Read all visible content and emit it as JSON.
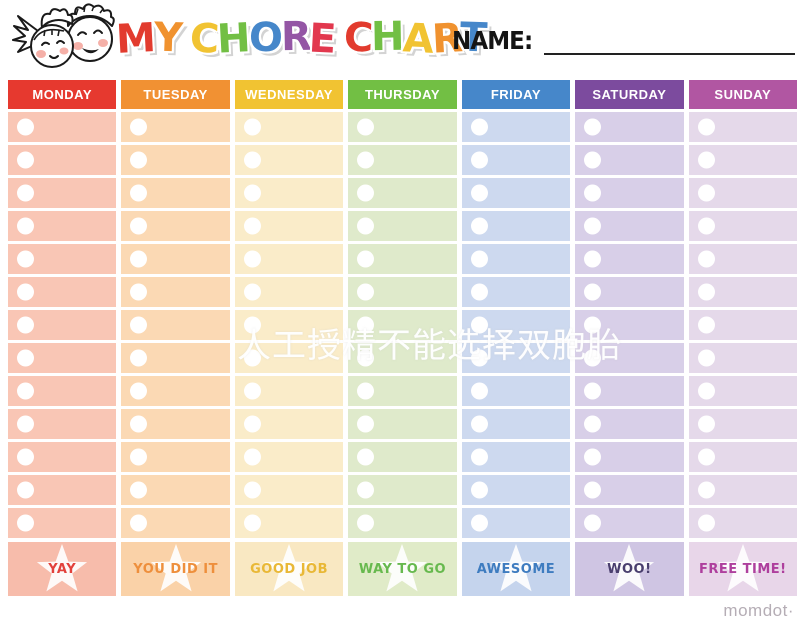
{
  "page": {
    "watermark": "人工授精不能选择双胞胎",
    "brand": "momdot·"
  },
  "header": {
    "name_label": "NAME:",
    "title_letters": [
      {
        "ch": "M",
        "color": "#e23b2e"
      },
      {
        "ch": "Y",
        "color": "#f0922f"
      },
      {
        "ch": " "
      },
      {
        "ch": "C",
        "color": "#f1c332"
      },
      {
        "ch": "H",
        "color": "#72bf44"
      },
      {
        "ch": "O",
        "color": "#4687ca"
      },
      {
        "ch": "R",
        "color": "#9456a5"
      },
      {
        "ch": "E",
        "color": "#e2384e"
      },
      {
        "ch": " "
      },
      {
        "ch": "C",
        "color": "#e23b2e"
      },
      {
        "ch": "H",
        "color": "#72bf44"
      },
      {
        "ch": "A",
        "color": "#f1c332"
      },
      {
        "ch": "R",
        "color": "#f0922f"
      },
      {
        "ch": "T",
        "color": "#4687ca"
      }
    ]
  },
  "chart": {
    "rows_per_column": 13,
    "days": [
      {
        "label": "MONDAY",
        "header_color": "#e6392f",
        "body_color": "#f9c6b5",
        "footer_bg": "#f7bcab",
        "praise": "YAY",
        "praise_color": "#e2413c"
      },
      {
        "label": "TUESDAY",
        "header_color": "#f19133",
        "body_color": "#fbd9b4",
        "footer_bg": "#fad2a8",
        "praise": "YOU DID IT",
        "praise_color": "#ee8f3c"
      },
      {
        "label": "WEDNESDAY",
        "header_color": "#f1c332",
        "body_color": "#faecc9",
        "footer_bg": "#f9e8c2",
        "praise": "GOOD JOB",
        "praise_color": "#e9b836"
      },
      {
        "label": "THURSDAY",
        "header_color": "#72bf44",
        "body_color": "#dfeacb",
        "footer_bg": "#e0ebc8",
        "praise": "WAY TO GO",
        "praise_color": "#67b94e"
      },
      {
        "label": "FRIDAY",
        "header_color": "#4687ca",
        "body_color": "#cdd9ef",
        "footer_bg": "#c5d4ed",
        "praise": "AWESOME",
        "praise_color": "#3e7cc0"
      },
      {
        "label": "SATURDAY",
        "header_color": "#7c4b9e",
        "body_color": "#d8cfe8",
        "footer_bg": "#cfc5e3",
        "praise": "WOO!",
        "praise_color": "#4a3f6e"
      },
      {
        "label": "SUNDAY",
        "header_color": "#b156a2",
        "body_color": "#e5d9ea",
        "footer_bg": "#e8d6e9",
        "praise": "FREE TIME!",
        "praise_color": "#ae3f9d"
      }
    ]
  }
}
